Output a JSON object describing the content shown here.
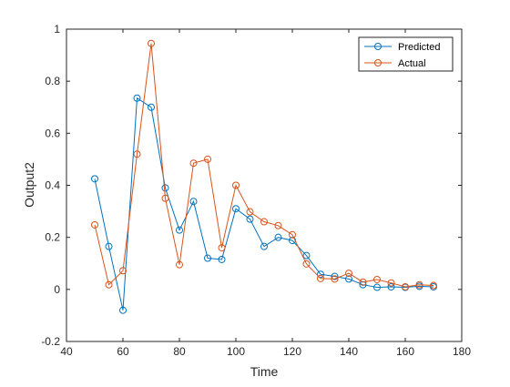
{
  "chart_data": {
    "type": "line",
    "xlabel": "Time",
    "ylabel": "Output2",
    "xlim": [
      40,
      180
    ],
    "ylim": [
      -0.2,
      1
    ],
    "xticks": [
      40,
      60,
      80,
      100,
      120,
      140,
      160,
      180
    ],
    "yticks": [
      -0.2,
      0,
      0.2,
      0.4,
      0.6,
      0.8,
      1
    ],
    "ytick_labels": [
      "-0.2",
      "0",
      "0.2",
      "0.4",
      "0.6",
      "0.8",
      "1"
    ],
    "grid": false,
    "legend_position": "top-right",
    "x": [
      50,
      55,
      60,
      65,
      70,
      75,
      80,
      85,
      90,
      95,
      100,
      105,
      110,
      115,
      120,
      125,
      130,
      135,
      140,
      145,
      150,
      155,
      160,
      165,
      170
    ],
    "series": [
      {
        "name": "Predicted",
        "color": "#0072BD",
        "marker": "circle",
        "values": [
          0.425,
          0.165,
          -0.08,
          0.735,
          0.7,
          0.39,
          0.228,
          0.338,
          0.12,
          0.115,
          0.31,
          0.27,
          0.165,
          0.2,
          0.188,
          0.13,
          0.058,
          0.05,
          0.04,
          0.018,
          0.008,
          0.01,
          0.008,
          0.012,
          0.01
        ]
      },
      {
        "name": "Actual",
        "color": "#D95319",
        "marker": "circle",
        "values": [
          0.248,
          0.018,
          0.072,
          0.52,
          0.945,
          0.35,
          0.095,
          0.485,
          0.5,
          0.16,
          0.4,
          0.298,
          0.26,
          0.245,
          0.21,
          0.098,
          0.042,
          0.04,
          0.062,
          0.028,
          0.038,
          0.025,
          0.01,
          0.018,
          0.015
        ]
      }
    ]
  }
}
